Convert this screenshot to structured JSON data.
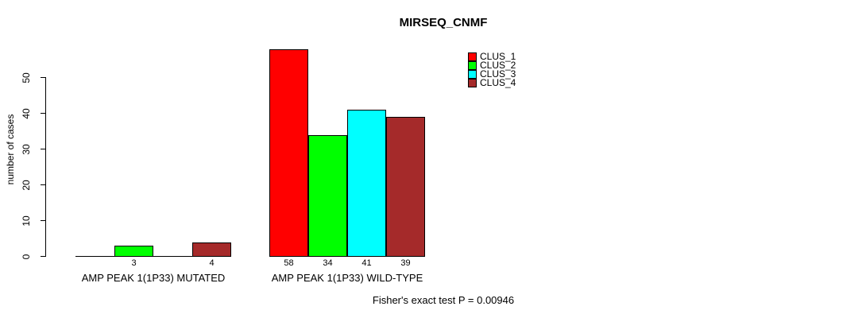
{
  "chart_data": {
    "type": "bar",
    "title": "MIRSEQ_CNMF",
    "ylabel": "number of cases",
    "xlabel": "",
    "ylim": [
      0,
      60
    ],
    "yticks": [
      0,
      10,
      20,
      30,
      40,
      50
    ],
    "grid": false,
    "background": "#ffffff",
    "axis_color": "#000000",
    "text_color": "#000000",
    "categories": [
      "AMP PEAK 1(1P33) MUTATED",
      "AMP PEAK 1(1P33) WILD-TYPE"
    ],
    "series": [
      {
        "name": "CLUS_1",
        "color": "#ff0000",
        "values": [
          0,
          58
        ]
      },
      {
        "name": "CLUS_2",
        "color": "#00ff00",
        "values": [
          3,
          34
        ]
      },
      {
        "name": "CLUS_3",
        "color": "#00ffff",
        "values": [
          0,
          41
        ]
      },
      {
        "name": "CLUS_4",
        "color": "#a52a2a",
        "values": [
          4,
          39
        ]
      }
    ],
    "bar_value_labels": [
      "3",
      "4",
      "58",
      "34",
      "41",
      "39"
    ],
    "legend": {
      "position": "top-right-inside",
      "entries": [
        "CLUS_1",
        "CLUS_2",
        "CLUS_3",
        "CLUS_4"
      ]
    },
    "annotation": "Fisher's exact test P = 0.00946"
  }
}
